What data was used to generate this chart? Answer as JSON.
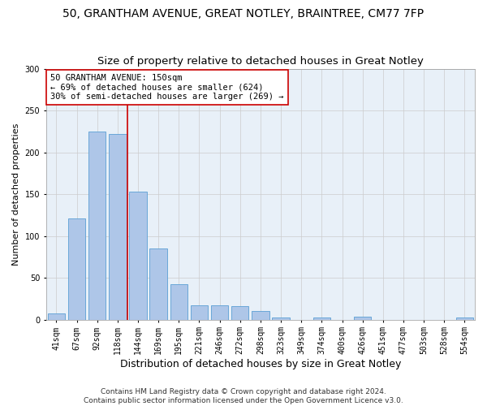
{
  "title_line1": "50, GRANTHAM AVENUE, GREAT NOTLEY, BRAINTREE, CM77 7FP",
  "title_line2": "Size of property relative to detached houses in Great Notley",
  "xlabel": "Distribution of detached houses by size in Great Notley",
  "ylabel": "Number of detached properties",
  "categories": [
    "41sqm",
    "67sqm",
    "92sqm",
    "118sqm",
    "144sqm",
    "169sqm",
    "195sqm",
    "221sqm",
    "246sqm",
    "272sqm",
    "298sqm",
    "323sqm",
    "349sqm",
    "374sqm",
    "400sqm",
    "426sqm",
    "451sqm",
    "477sqm",
    "503sqm",
    "528sqm",
    "554sqm"
  ],
  "values": [
    7,
    121,
    225,
    222,
    153,
    85,
    42,
    17,
    17,
    16,
    10,
    2,
    0,
    2,
    0,
    3,
    0,
    0,
    0,
    0,
    2
  ],
  "bar_color": "#aec6e8",
  "bar_edge_color": "#5a9fd4",
  "vline_color": "#cc0000",
  "vline_position": 3.5,
  "annotation_text": "50 GRANTHAM AVENUE: 150sqm\n← 69% of detached houses are smaller (624)\n30% of semi-detached houses are larger (269) →",
  "annotation_box_color": "#ffffff",
  "annotation_box_edge_color": "#cc0000",
  "ylim": [
    0,
    300
  ],
  "yticks": [
    0,
    50,
    100,
    150,
    200,
    250,
    300
  ],
  "grid_color": "#cccccc",
  "bg_color": "#e8f0f8",
  "fig_bg_color": "#ffffff",
  "footer_text": "Contains HM Land Registry data © Crown copyright and database right 2024.\nContains public sector information licensed under the Open Government Licence v3.0.",
  "title_fontsize": 10,
  "subtitle_fontsize": 9.5,
  "xlabel_fontsize": 9,
  "ylabel_fontsize": 8,
  "tick_fontsize": 7,
  "annotation_fontsize": 7.5,
  "footer_fontsize": 6.5
}
